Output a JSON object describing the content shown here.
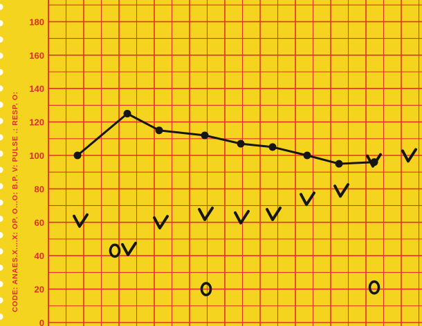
{
  "chart_data": {
    "type": "line",
    "code_legend": "CODE: ANAES.X....X: OP. O...O: B.P. V: PULSE .: RESP. O:",
    "y_ticks": [
      "0",
      "20",
      "40",
      "60",
      "80",
      "100",
      "120",
      "140",
      "160",
      "180"
    ],
    "ylim": [
      0,
      190
    ],
    "grid": true,
    "colors": {
      "paper": "#f4d41e",
      "grid": "#e3302a",
      "ink": "#161616"
    },
    "series": [
      {
        "marker": "dot",
        "points": [
          {
            "x": 112,
            "y": 100
          },
          {
            "x": 184,
            "y": 125
          },
          {
            "x": 230,
            "y": 115
          },
          {
            "x": 296,
            "y": 112
          },
          {
            "x": 348,
            "y": 107
          },
          {
            "x": 394,
            "y": 105
          },
          {
            "x": 444,
            "y": 100
          },
          {
            "x": 490,
            "y": 95
          },
          {
            "x": 541,
            "y": 96
          }
        ]
      },
      {
        "marker": "v",
        "points": [
          {
            "x": 116,
            "y": 60
          },
          {
            "x": 186,
            "y": 43
          },
          {
            "x": 232,
            "y": 59
          },
          {
            "x": 297,
            "y": 64
          },
          {
            "x": 349,
            "y": 62
          },
          {
            "x": 395,
            "y": 64
          },
          {
            "x": 444,
            "y": 73
          },
          {
            "x": 493,
            "y": 78
          },
          {
            "x": 540,
            "y": 96
          },
          {
            "x": 591,
            "y": 99
          }
        ]
      },
      {
        "marker": "o",
        "points": [
          {
            "x": 166,
            "y": 43
          },
          {
            "x": 298,
            "y": 20
          },
          {
            "x": 541,
            "y": 21
          }
        ]
      }
    ]
  }
}
